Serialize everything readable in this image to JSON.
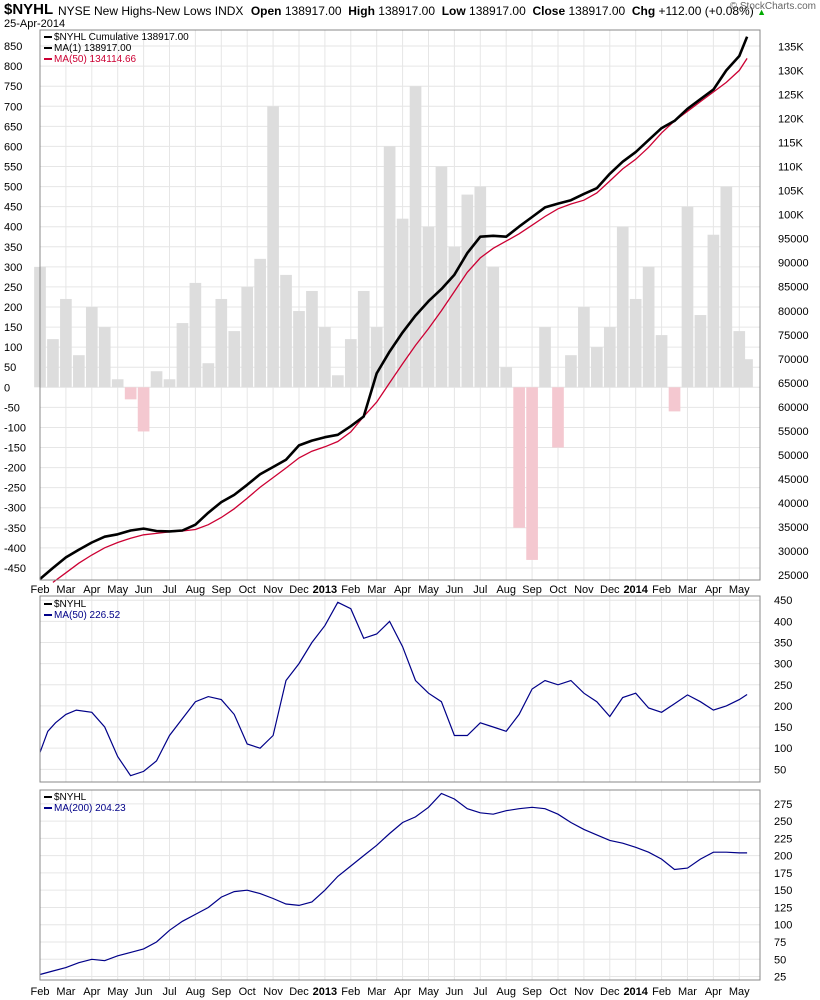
{
  "header": {
    "symbol": "$NYHL",
    "name": "NYSE New Highs-New Lows",
    "exchange": "INDX",
    "date": "25-Apr-2014",
    "open_label": "Open",
    "open": "138917.00",
    "high_label": "High",
    "high": "138917.00",
    "low_label": "Low",
    "low": "138917.00",
    "close_label": "Close",
    "close": "138917.00",
    "chg_label": "Chg",
    "chg": "+112.00 (+0.08%)",
    "watermark": "© StockCharts.com"
  },
  "x_axis": {
    "labels": [
      "Feb",
      "Mar",
      "Apr",
      "May",
      "Jun",
      "Jul",
      "Aug",
      "Sep",
      "Oct",
      "Nov",
      "Dec",
      "2013",
      "Feb",
      "Mar",
      "Apr",
      "May",
      "Jun",
      "Jul",
      "Aug",
      "Sep",
      "Oct",
      "Nov",
      "Dec",
      "2014",
      "Feb",
      "Mar",
      "Apr",
      "May"
    ],
    "bold_labels": [
      "2013",
      "2014"
    ],
    "range_months": [
      0,
      27.8
    ]
  },
  "colors": {
    "cumulative": "#000000",
    "ma50_main": "#cc0033",
    "histogram_pos": "#dddddd",
    "histogram_neg": "#f4c8d0",
    "ma_lower": "#000088",
    "grid": "#e6e6e6"
  },
  "chart_data": [
    {
      "type": "area",
      "panel": "main",
      "legend": [
        {
          "label": "$NYHL Cumulative 138917.00",
          "color": "#000000"
        },
        {
          "label": "MA(1) 138917.00",
          "color": "#000000"
        },
        {
          "label": "MA(50) 134114.66",
          "color": "#cc0033"
        }
      ],
      "left_axis": {
        "ticks": [
          850,
          800,
          750,
          700,
          650,
          600,
          550,
          500,
          450,
          400,
          350,
          300,
          250,
          200,
          150,
          100,
          50,
          0,
          -50,
          -100,
          -150,
          -200,
          -250,
          -300,
          -350,
          -400,
          -450
        ],
        "range": [
          -480,
          890
        ]
      },
      "right_axis": {
        "ticks": [
          135000,
          130000,
          125000,
          120000,
          115000,
          110000,
          105000,
          100000,
          95000,
          90000,
          85000,
          80000,
          75000,
          70000,
          65000,
          60000,
          55000,
          50000,
          45000,
          40000,
          35000,
          30000,
          25000
        ],
        "tick_labels": [
          "135K",
          "130K",
          "125K",
          "120K",
          "115K",
          "110K",
          "105K",
          "100K",
          "95000",
          "90000",
          "85000",
          "80000",
          "75000",
          "70000",
          "65000",
          "60000",
          "55000",
          "50000",
          "45000",
          "40000",
          "35000",
          "30000",
          "25000"
        ],
        "range": [
          24000,
          138400
        ]
      },
      "series": [
        {
          "name": "$NYHL Cumulative",
          "axis": "right",
          "x": [
            0,
            0.5,
            1,
            1.5,
            2,
            2.5,
            3,
            3.5,
            4,
            4.5,
            5,
            5.5,
            6,
            6.5,
            7,
            7.5,
            8,
            8.5,
            9,
            9.5,
            10,
            10.5,
            11,
            11.5,
            12,
            12.5,
            13,
            13.5,
            14,
            14.5,
            15,
            15.5,
            16,
            16.5,
            17,
            17.5,
            18,
            18.5,
            19,
            19.5,
            20,
            20.5,
            21,
            21.5,
            22,
            22.5,
            23,
            23.5,
            24,
            24.5,
            25,
            25.5,
            26,
            26.5,
            27,
            27.3
          ],
          "values": [
            24200,
            26500,
            28700,
            30300,
            31800,
            33000,
            33500,
            34300,
            34700,
            34200,
            34100,
            34300,
            35500,
            38000,
            40200,
            41700,
            43800,
            46000,
            47500,
            49000,
            52000,
            53000,
            53700,
            54200,
            56000,
            58000,
            67000,
            71500,
            75500,
            79000,
            82000,
            84500,
            87500,
            92000,
            95400,
            95600,
            95400,
            97500,
            99500,
            101500,
            102300,
            103000,
            104300,
            105500,
            108500,
            111000,
            113000,
            115500,
            118000,
            119500,
            122000,
            124000,
            126000,
            130000,
            133000,
            137000
          ]
        },
        {
          "name": "MA(50)",
          "axis": "right",
          "x": [
            0.5,
            1,
            1.5,
            2,
            2.5,
            3,
            3.5,
            4,
            4.5,
            5,
            5.5,
            6,
            6.5,
            7,
            7.5,
            8,
            8.5,
            9,
            9.5,
            10,
            10.5,
            11,
            11.5,
            12,
            12.5,
            13,
            13.5,
            14,
            14.5,
            15,
            15.5,
            16,
            16.5,
            17,
            17.5,
            18,
            18.5,
            19,
            19.5,
            20,
            20.5,
            21,
            21.5,
            22,
            22.5,
            23,
            23.5,
            24,
            24.5,
            25,
            25.5,
            26,
            26.5,
            27,
            27.3
          ],
          "values": [
            23500,
            25500,
            27500,
            29200,
            30700,
            31800,
            32700,
            33400,
            33700,
            34000,
            34200,
            34500,
            35500,
            37000,
            38800,
            41000,
            43300,
            45300,
            47300,
            49400,
            50800,
            51700,
            52800,
            54800,
            58000,
            61000,
            65000,
            69000,
            72800,
            76300,
            80000,
            84000,
            88000,
            91000,
            93000,
            94500,
            96000,
            97800,
            99600,
            101200,
            102200,
            103000,
            104500,
            107000,
            109500,
            111500,
            114000,
            117000,
            119500,
            121500,
            123500,
            125500,
            127500,
            130000,
            132500
          ]
        },
        {
          "name": "$NYHL",
          "style": "histogram",
          "axis": "left",
          "x": [
            0,
            0.5,
            1,
            1.5,
            2,
            2.5,
            3,
            3.5,
            4,
            4.5,
            5,
            5.5,
            6,
            6.5,
            7,
            7.5,
            8,
            8.5,
            9,
            9.5,
            10,
            10.5,
            11,
            11.5,
            12,
            12.5,
            13,
            13.5,
            14,
            14.5,
            15,
            15.5,
            16,
            16.5,
            17,
            17.5,
            18,
            18.5,
            19,
            19.5,
            20,
            20.5,
            21,
            21.5,
            22,
            22.5,
            23,
            23.5,
            24,
            24.5,
            25,
            25.5,
            26,
            26.5,
            27,
            27.3
          ],
          "values": [
            300,
            120,
            220,
            80,
            200,
            150,
            20,
            -30,
            -110,
            40,
            20,
            160,
            260,
            60,
            220,
            140,
            250,
            320,
            700,
            280,
            190,
            240,
            150,
            30,
            120,
            240,
            150,
            600,
            420,
            750,
            400,
            550,
            350,
            480,
            500,
            300,
            50,
            -350,
            -430,
            150,
            -150,
            80,
            200,
            100,
            150,
            400,
            220,
            300,
            130,
            -60,
            450,
            180,
            380,
            500,
            140,
            70
          ]
        }
      ]
    },
    {
      "type": "line",
      "panel": "middle",
      "legend": [
        {
          "label": "$NYHL",
          "color": "#000000"
        },
        {
          "label": "MA(50) 226.52",
          "color": "#000088"
        }
      ],
      "ticks": [
        450,
        400,
        350,
        300,
        250,
        200,
        150,
        100,
        50
      ],
      "range": [
        20,
        460
      ],
      "series": [
        {
          "name": "MA(50)",
          "x": [
            0,
            0.3,
            0.6,
            1,
            1.4,
            2,
            2.5,
            3,
            3.5,
            4,
            4.5,
            5,
            5.5,
            6,
            6.5,
            7,
            7.5,
            8,
            8.5,
            9,
            9.5,
            10,
            10.5,
            11,
            11.5,
            12,
            12.5,
            13,
            13.5,
            14,
            14.5,
            15,
            15.5,
            16,
            16.5,
            17,
            17.5,
            18,
            18.5,
            19,
            19.5,
            20,
            20.5,
            21,
            21.5,
            22,
            22.5,
            23,
            23.5,
            24,
            24.5,
            25,
            25.5,
            26,
            26.5,
            27,
            27.3
          ],
          "values": [
            90,
            140,
            160,
            180,
            190,
            185,
            150,
            80,
            35,
            45,
            70,
            130,
            170,
            210,
            222,
            215,
            180,
            110,
            100,
            130,
            260,
            300,
            350,
            390,
            445,
            430,
            360,
            370,
            400,
            340,
            260,
            230,
            210,
            130,
            130,
            160,
            150,
            140,
            180,
            240,
            260,
            250,
            260,
            230,
            210,
            175,
            220,
            230,
            195,
            185,
            205,
            226,
            210,
            190,
            200,
            215,
            227
          ]
        }
      ]
    },
    {
      "type": "line",
      "panel": "bottom",
      "legend": [
        {
          "label": "$NYHL",
          "color": "#000000"
        },
        {
          "label": "MA(200) 204.23",
          "color": "#000088"
        }
      ],
      "ticks": [
        275,
        250,
        225,
        200,
        175,
        150,
        125,
        100,
        75,
        50,
        25
      ],
      "range": [
        20,
        295
      ],
      "series": [
        {
          "name": "MA(200)",
          "x": [
            0,
            0.5,
            1,
            1.5,
            2,
            2.5,
            3,
            3.5,
            4,
            4.5,
            5,
            5.5,
            6,
            6.5,
            7,
            7.5,
            8,
            8.5,
            9,
            9.5,
            10,
            10.5,
            11,
            11.5,
            12,
            12.5,
            13,
            13.5,
            14,
            14.5,
            15,
            15.5,
            16,
            16.5,
            17,
            17.5,
            18,
            18.5,
            19,
            19.5,
            20,
            20.5,
            21,
            21.5,
            22,
            22.5,
            23,
            23.5,
            24,
            24.5,
            25,
            25.5,
            26,
            26.5,
            27,
            27.3
          ],
          "values": [
            28,
            33,
            38,
            45,
            50,
            48,
            55,
            60,
            65,
            75,
            92,
            105,
            115,
            125,
            140,
            148,
            150,
            145,
            138,
            130,
            128,
            133,
            150,
            170,
            185,
            200,
            215,
            232,
            248,
            256,
            270,
            290,
            282,
            268,
            262,
            260,
            265,
            268,
            270,
            268,
            260,
            248,
            238,
            230,
            222,
            218,
            212,
            205,
            195,
            180,
            182,
            195,
            205,
            205,
            204,
            204
          ]
        }
      ]
    }
  ]
}
